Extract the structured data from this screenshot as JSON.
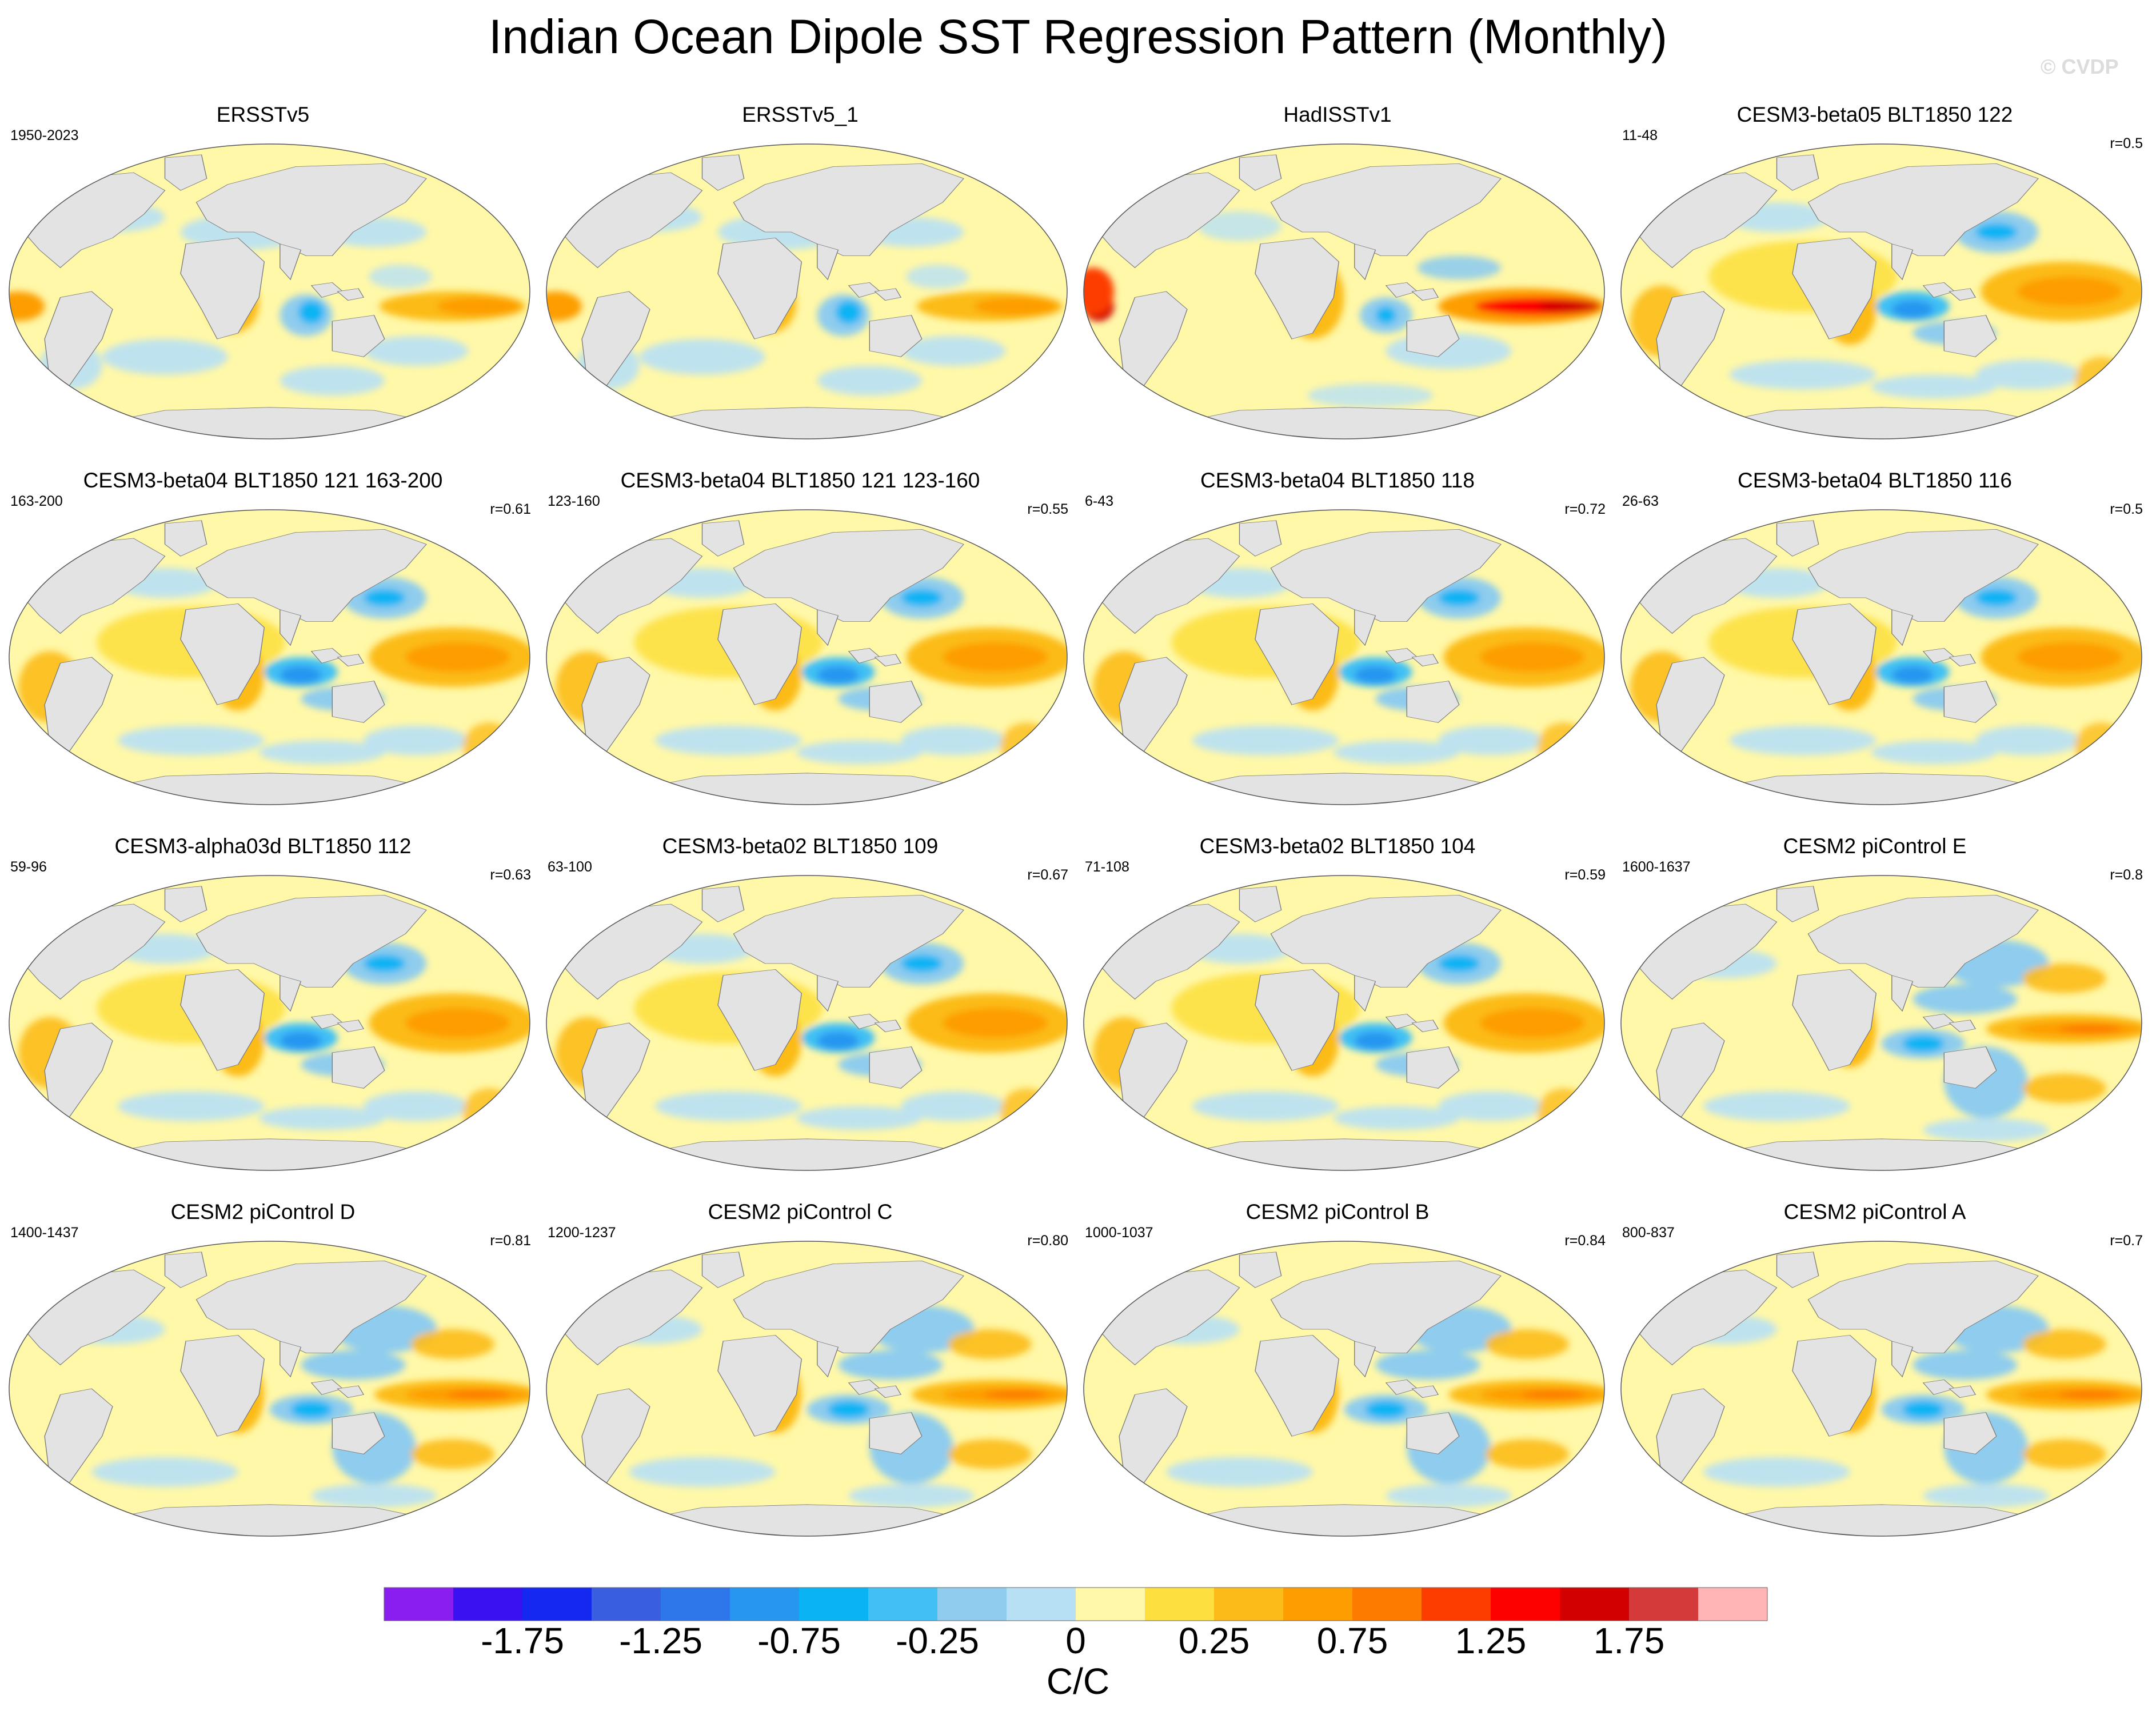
{
  "figure": {
    "title": "Indian Ocean Dipole SST Regression Pattern (Monthly)",
    "watermark": "© CVDP"
  },
  "panels": [
    {
      "title": "ERSSTv5",
      "period": "1950-2023",
      "corr": "",
      "style": 0
    },
    {
      "title": "ERSSTv5_1",
      "period": "",
      "corr": "",
      "style": 0
    },
    {
      "title": "HadISSTv1",
      "period": "",
      "corr": "",
      "style": 2
    },
    {
      "title": "CESM3-beta05 BLT1850 122",
      "period": "11-48",
      "corr": "r=0.5",
      "style": 1
    },
    {
      "title": "CESM3-beta04 BLT1850 121 163-200",
      "period": "163-200",
      "corr": "r=0.61",
      "style": 1
    },
    {
      "title": "CESM3-beta04 BLT1850 121 123-160",
      "period": "123-160",
      "corr": "r=0.55",
      "style": 1
    },
    {
      "title": "CESM3-beta04 BLT1850 118",
      "period": "6-43",
      "corr": "r=0.72",
      "style": 1
    },
    {
      "title": "CESM3-beta04 BLT1850 116",
      "period": "26-63",
      "corr": "r=0.5",
      "style": 1
    },
    {
      "title": "CESM3-alpha03d BLT1850 112",
      "period": "59-96",
      "corr": "r=0.63",
      "style": 1
    },
    {
      "title": "CESM3-beta02 BLT1850 109",
      "period": "63-100",
      "corr": "r=0.67",
      "style": 1
    },
    {
      "title": "CESM3-beta02 BLT1850 104",
      "period": "71-108",
      "corr": "r=0.59",
      "style": 1
    },
    {
      "title": "CESM2 piControl E",
      "period": "1600-1637",
      "corr": "r=0.8",
      "style": 3
    },
    {
      "title": "CESM2 piControl D",
      "period": "1400-1437",
      "corr": "r=0.81",
      "style": 3
    },
    {
      "title": "CESM2 piControl C",
      "period": "1200-1237",
      "corr": "r=0.80",
      "style": 3
    },
    {
      "title": "CESM2 piControl B",
      "period": "1000-1037",
      "corr": "r=0.84",
      "style": 3
    },
    {
      "title": "CESM2 piControl A",
      "period": "800-837",
      "corr": "r=0.7",
      "style": 3
    }
  ],
  "colorbar": {
    "colors": [
      "#8a1ef0",
      "#3a12f2",
      "#1428f0",
      "#3a5ee0",
      "#2d77ea",
      "#2696f0",
      "#0ab4f4",
      "#40c0f5",
      "#8fccee",
      "#b8e0f5",
      "#fff8a8",
      "#fde040",
      "#fcbb18",
      "#fd9d00",
      "#fd7c00",
      "#fd3c00",
      "#fd0000",
      "#d20000",
      "#d53a3a",
      "#ffb5b5"
    ],
    "labels": [
      "-1.75",
      "-1.25",
      "-0.75",
      "-0.25",
      "0",
      "0.25",
      "0.75",
      "1.25",
      "1.75"
    ],
    "units": "C/C"
  },
  "map_colors": {
    "land": "#e3e3e3",
    "coast": "#7a7a7a",
    "ocean_base": "#fff8a8",
    "ice": "#ffffff"
  }
}
